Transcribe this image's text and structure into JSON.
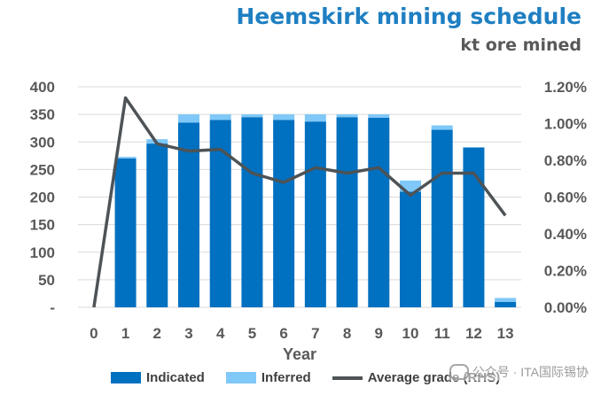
{
  "header": {
    "title": "Heemskirk mining schedule",
    "subtitle": "kt ore mined"
  },
  "watermark": {
    "text": "公众号 · ITA国际锡协"
  },
  "colors": {
    "indicated": "#0070c0",
    "inferred": "#7fc8f8",
    "grade_line": "#4d5356",
    "grid": "#d9d9d9",
    "axis_text": "#595959"
  },
  "chart_data": {
    "type": "bar",
    "stacked": true,
    "title": "Heemskirk mining schedule",
    "subtitle": "kt ore mined",
    "xlabel": "Year",
    "categories": [
      "0",
      "1",
      "2",
      "3",
      "4",
      "5",
      "6",
      "7",
      "8",
      "9",
      "10",
      "11",
      "12",
      "13"
    ],
    "series": [
      {
        "name": "Indicated",
        "type": "bar",
        "axis": "left",
        "values": [
          0,
          270,
          297,
          335,
          340,
          345,
          340,
          337,
          345,
          344,
          210,
          322,
          290,
          10
        ]
      },
      {
        "name": "Inferred",
        "type": "bar",
        "axis": "left",
        "values": [
          0,
          3,
          8,
          15,
          10,
          5,
          10,
          13,
          5,
          6,
          20,
          8,
          0,
          7
        ]
      },
      {
        "name": "Average grade (RHS)",
        "type": "line",
        "axis": "right",
        "values": [
          0.0,
          1.14,
          0.89,
          0.85,
          0.86,
          0.73,
          0.68,
          0.76,
          0.73,
          0.76,
          0.61,
          0.73,
          0.73,
          0.5
        ]
      }
    ],
    "y_left": {
      "ylim": [
        0,
        400
      ],
      "ticks": [
        0,
        50,
        100,
        150,
        200,
        250,
        300,
        350,
        400
      ],
      "tick_labels": [
        "-",
        "50",
        "100",
        "150",
        "200",
        "250",
        "300",
        "350",
        "400"
      ]
    },
    "y_right": {
      "ylim": [
        0,
        1.2
      ],
      "ticks": [
        0,
        0.2,
        0.4,
        0.6,
        0.8,
        1.0,
        1.2
      ],
      "tick_labels": [
        "0.00%",
        "0.20%",
        "0.40%",
        "0.60%",
        "0.80%",
        "1.00%",
        "1.20%"
      ]
    },
    "grid": true,
    "legend_position": "bottom"
  }
}
